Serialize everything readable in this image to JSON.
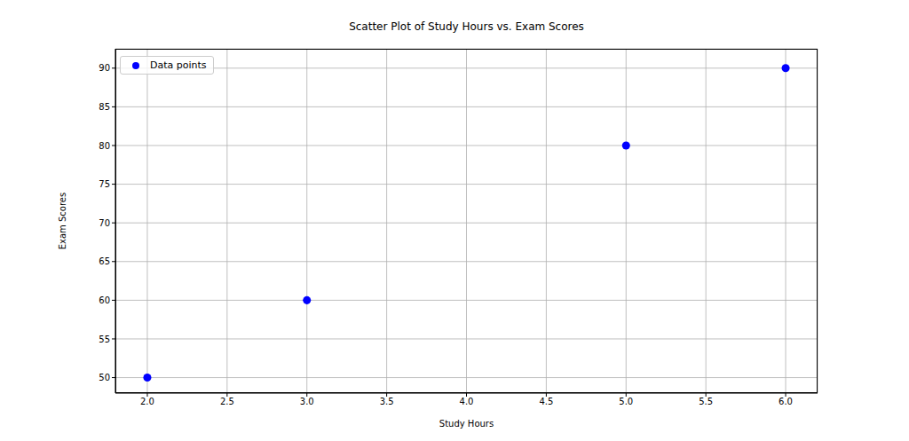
{
  "chart_data": {
    "type": "scatter",
    "title": "Scatter Plot of Study Hours vs. Exam Scores",
    "x_label": "Study Hours",
    "y_label": "Exam Scores",
    "series": [
      {
        "name": "Data points",
        "color": "#0000ff",
        "x": [
          2,
          3,
          5,
          6
        ],
        "values": [
          50,
          60,
          80,
          90
        ],
        "marker": "circle"
      }
    ],
    "xlim": [
      1.8,
      6.2
    ],
    "ylim": [
      48,
      92.5
    ],
    "xticks": [
      {
        "value": 2,
        "label": "2.0"
      },
      {
        "value": 2.5,
        "label": "2.5"
      },
      {
        "value": 3,
        "label": "3.0"
      },
      {
        "value": 3.5,
        "label": "3.5"
      },
      {
        "value": 4,
        "label": "4.0"
      },
      {
        "value": 4.5,
        "label": "4.5"
      },
      {
        "value": 5,
        "label": "5.0"
      },
      {
        "value": 5.5,
        "label": "5.5"
      },
      {
        "value": 6,
        "label": "6.0"
      }
    ],
    "yticks": [
      50,
      55,
      60,
      65,
      70,
      75,
      80,
      85,
      90
    ],
    "grid": true,
    "legend": "upper left"
  }
}
